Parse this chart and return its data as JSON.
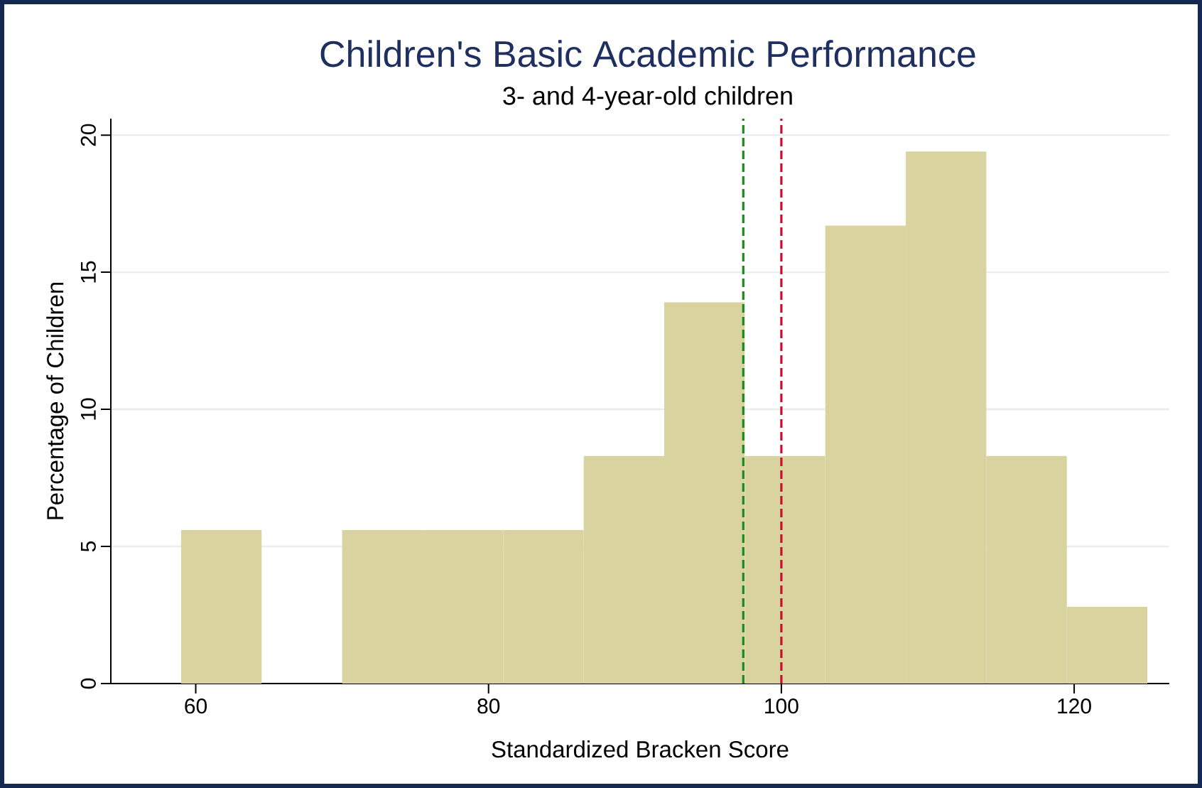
{
  "chart_data": {
    "type": "histogram",
    "title": "Children's Basic Academic Performance",
    "subtitle": "3- and 4-year-old children",
    "xlabel": "Standardized Bracken Score",
    "ylabel": "Percentage of Children",
    "bins": [
      59,
      64.5,
      70,
      75.5,
      81,
      86.5,
      92,
      97.5,
      103,
      108.5,
      114,
      119.5,
      125
    ],
    "values": [
      5.6,
      0,
      5.6,
      5.6,
      5.6,
      8.3,
      13.9,
      8.3,
      16.7,
      19.4,
      8.3,
      2.8
    ],
    "color": "#d9d3a0",
    "xlim": [
      54.2,
      126.5
    ],
    "ylim": [
      0,
      20.6
    ],
    "xticks": [
      60,
      80,
      100,
      120
    ],
    "yticks": [
      0,
      5,
      10,
      15,
      20
    ],
    "grid": "y",
    "ref_lines": [
      {
        "axis": "x",
        "value": 97.4,
        "color": "#1a8a1a",
        "line_style": "dashed"
      },
      {
        "axis": "x",
        "value": 100,
        "color": "#c8102e",
        "line_style": "dashed"
      }
    ]
  }
}
